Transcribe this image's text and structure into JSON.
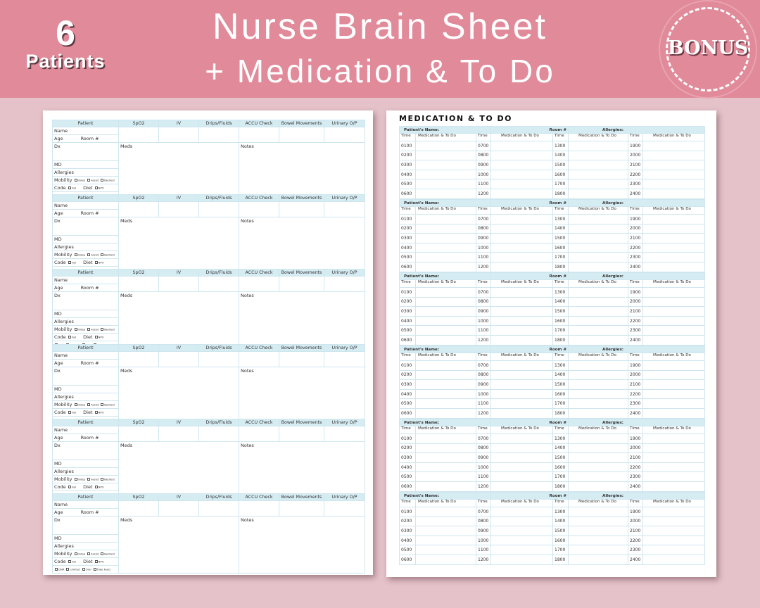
{
  "header": {
    "count": "6",
    "count_label": "Patients",
    "title_line1": "Nurse Brain Sheet",
    "title_line2": "+ Medication & To Do"
  },
  "brain_sheet": {
    "columns": [
      "Patient",
      "SpO2",
      "IV",
      "Drips/Fluids",
      "ACCU Check",
      "Bowel Movements",
      "Urinary O/P"
    ],
    "name": "Name",
    "age": "Age",
    "room": "Room #",
    "dx": "Dx",
    "meds": "Meds",
    "notes": "Notes",
    "md": "MD",
    "allergies": "Allergies",
    "mobility": "Mobility",
    "mobility_options": [
      "Indep",
      "Assist",
      "Bedrest"
    ],
    "code": "Code",
    "code_options": [
      "Full",
      "DNR",
      "Limited"
    ],
    "diet": "Diet",
    "diet_options": [
      "NPO",
      "Oral",
      "Tube Feed"
    ],
    "block_count": 6
  },
  "medication_sheet": {
    "title": "MEDICATION & TO DO",
    "patient_name": "Patient's Name:",
    "room": "Room #",
    "allergies": "Allergies:",
    "time_label": "Time",
    "med_label": "Medication & To Do",
    "times": [
      [
        "0100",
        "0700",
        "1300",
        "1900"
      ],
      [
        "0200",
        "0800",
        "1400",
        "2000"
      ],
      [
        "0300",
        "0900",
        "1500",
        "2100"
      ],
      [
        "0400",
        "1000",
        "1600",
        "2200"
      ],
      [
        "0500",
        "1100",
        "1700",
        "2300"
      ],
      [
        "0600",
        "1200",
        "1800",
        "2400"
      ]
    ],
    "block_count": 6
  },
  "badge": {
    "label": "BONUS"
  },
  "colors": {
    "band": "#e08a9a",
    "background": "#e5c2c9",
    "table_header": "#d6ecf3"
  }
}
